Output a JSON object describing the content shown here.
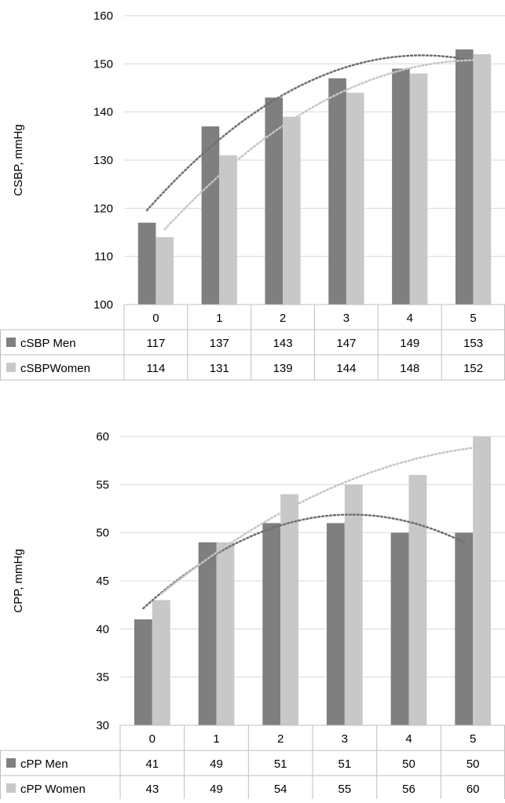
{
  "chart_data": [
    {
      "type": "bar",
      "ylabel": "CSBP, mmHg",
      "ylim": [
        100,
        160
      ],
      "yticks": [
        100,
        110,
        120,
        130,
        140,
        150,
        160
      ],
      "categories": [
        "0",
        "1",
        "2",
        "3",
        "4",
        "5"
      ],
      "grid": true,
      "legend": "data table rows below the plot",
      "trendlines": "polynomial, dotted, one per series",
      "series": [
        {
          "name": "cSBP Men",
          "values": [
            117,
            137,
            143,
            147,
            149,
            153
          ],
          "color": "#7f7f7f"
        },
        {
          "name": "cSBPWomen",
          "values": [
            114,
            131,
            139,
            144,
            148,
            152
          ],
          "color": "#c8c8c8"
        }
      ]
    },
    {
      "type": "bar",
      "ylabel": "CPP, mmHg",
      "ylim": [
        30,
        60
      ],
      "yticks": [
        30,
        35,
        40,
        45,
        50,
        55,
        60
      ],
      "categories": [
        "0",
        "1",
        "2",
        "3",
        "4",
        "5"
      ],
      "grid": true,
      "legend": "data table rows below the plot",
      "trendlines": "polynomial, dotted, one per series",
      "series": [
        {
          "name": "cPP Men",
          "values": [
            41,
            49,
            51,
            51,
            50,
            50
          ],
          "color": "#7f7f7f"
        },
        {
          "name": "cPP Women",
          "values": [
            43,
            49,
            54,
            55,
            56,
            60
          ],
          "color": "#c8c8c8"
        }
      ]
    }
  ],
  "colors": {
    "men": "#7f7f7f",
    "women": "#c8c8c8",
    "men_trend": "#6f6f6f",
    "women_trend": "#c6c6c6",
    "grid": "#d9d9d9"
  }
}
